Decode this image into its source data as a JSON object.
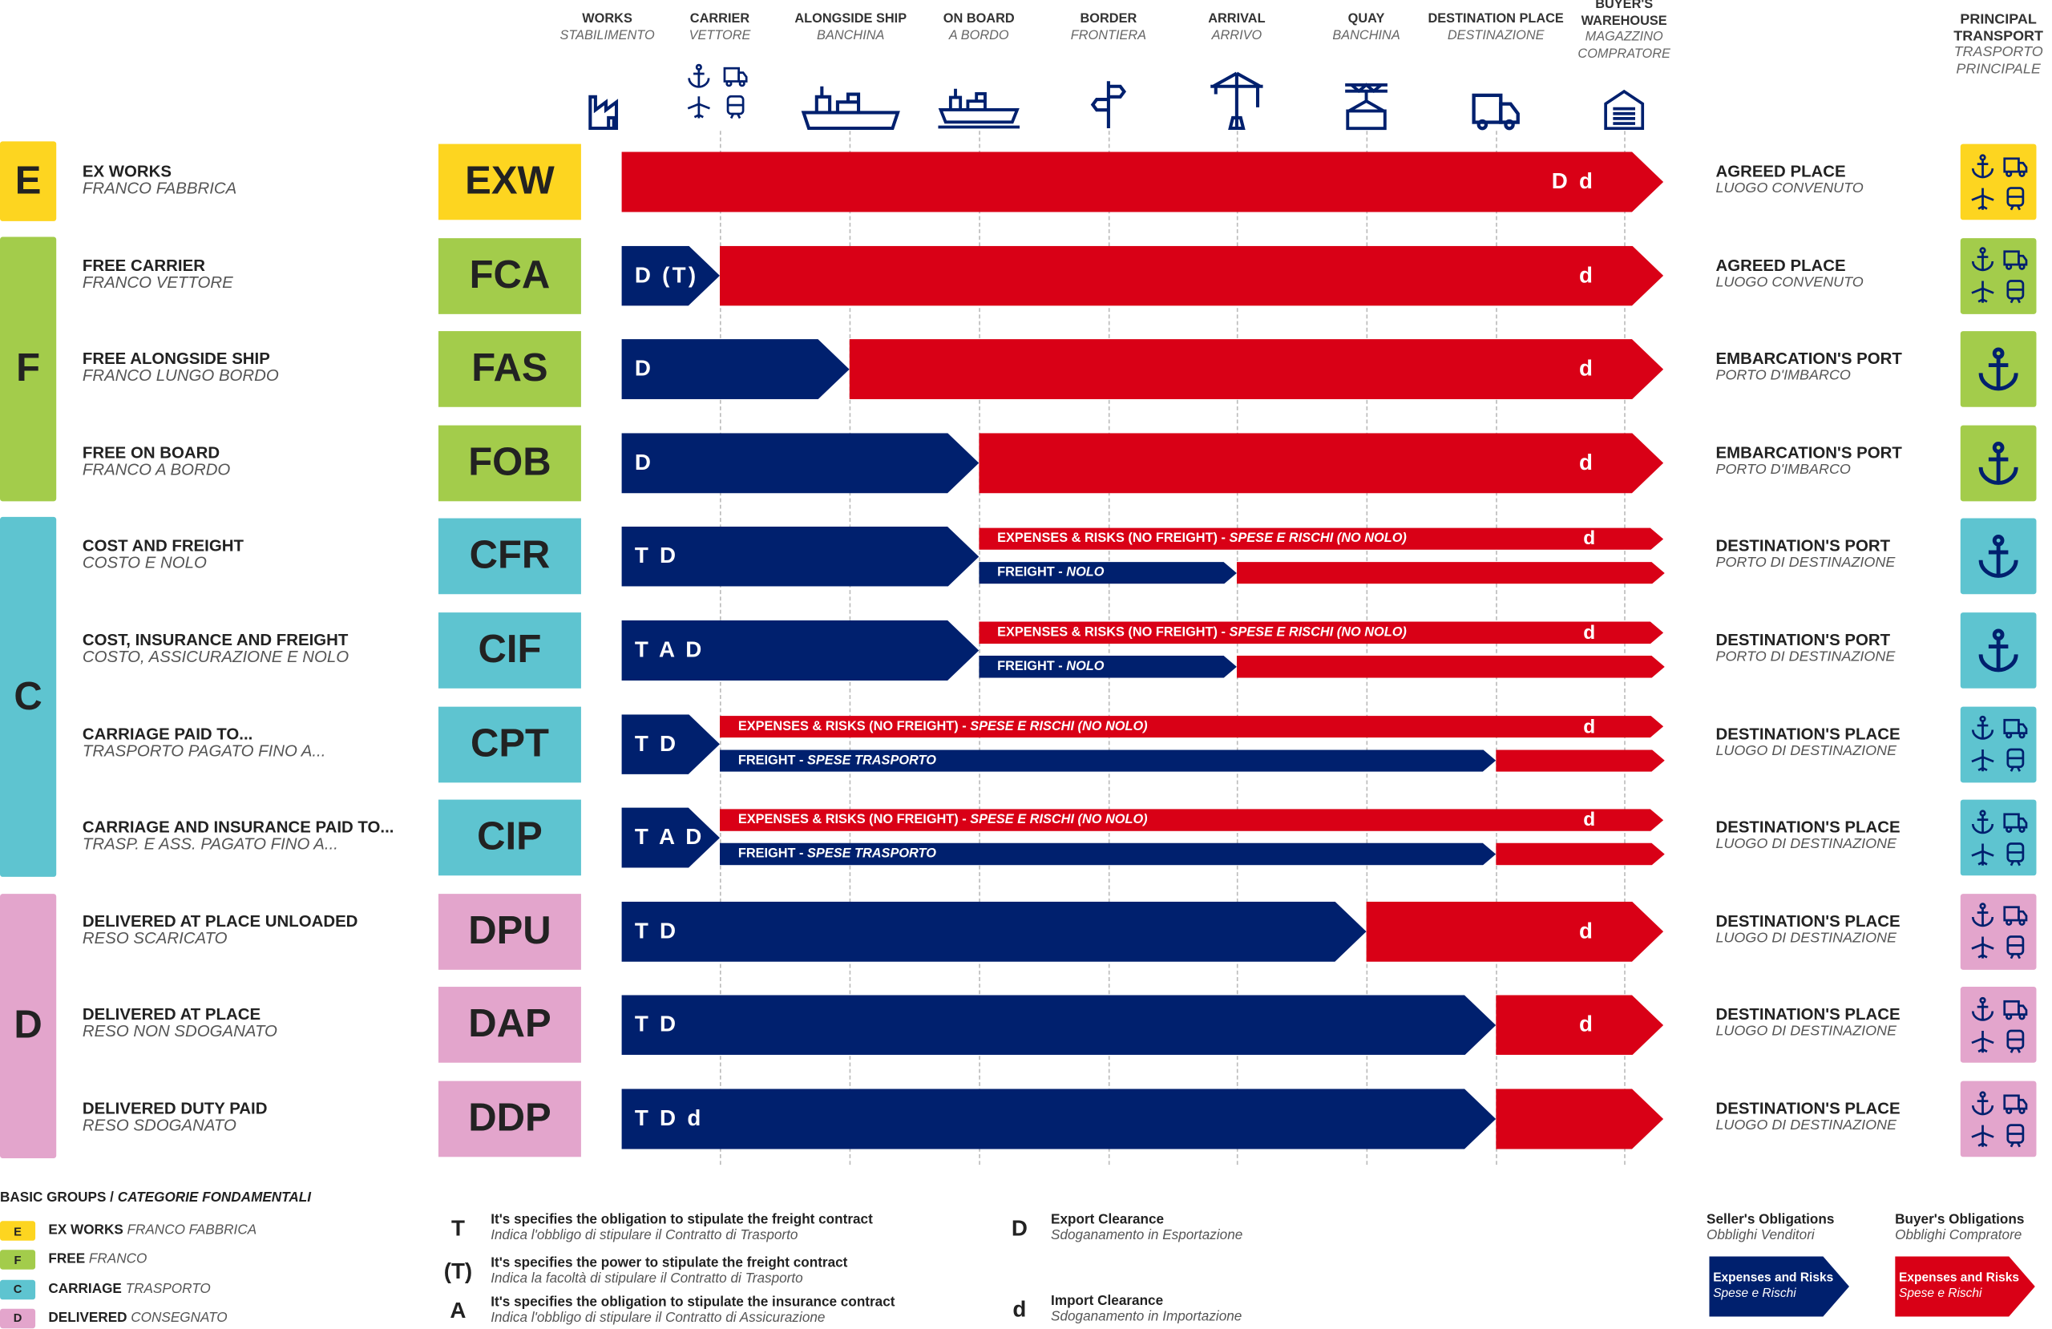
{
  "colors": {
    "E": "#fdd520",
    "F": "#a3cc4b",
    "C": "#5ec4d0",
    "D": "#e3a5cc",
    "seller": "#00206e",
    "buyer": "#d90016",
    "icon": "#00206e"
  },
  "columns": [
    {
      "key": "works",
      "label": "WORKS",
      "label_it": "STABILIMENTO",
      "icon": "factory-icon"
    },
    {
      "key": "carrier",
      "label": "CARRIER",
      "label_it": "VETTORE",
      "icon": "multimodal-icon"
    },
    {
      "key": "alongside",
      "label": "ALONGSIDE SHIP",
      "label_it": "BANCHINA",
      "icon": "ship-icon"
    },
    {
      "key": "onboard",
      "label": "ON BOARD",
      "label_it": "A BORDO",
      "icon": "ship-on-water-icon"
    },
    {
      "key": "border",
      "label": "BORDER",
      "label_it": "FRONTIERA",
      "icon": "signpost-icon"
    },
    {
      "key": "arrival",
      "label": "ARRIVAL",
      "label_it": "ARRIVO",
      "icon": "crane-icon"
    },
    {
      "key": "quay",
      "label": "QUAY",
      "label_it": "BANCHINA",
      "icon": "container-icon"
    },
    {
      "key": "dest",
      "label": "DESTINATION PLACE",
      "label_it": "DESTINAZIONE",
      "icon": "truck-icon"
    },
    {
      "key": "warehouse",
      "label": "BUYER'S WAREHOUSE",
      "label_it": "MAGAZZINO COMPRATORE",
      "icon": "warehouse-icon"
    }
  ],
  "principal_transport": {
    "label": "PRINCIPAL TRANSPORT",
    "label_it": "TRASPORTO PRINCIPALE"
  },
  "groups": [
    {
      "letter": "E",
      "rows": 1
    },
    {
      "letter": "F",
      "rows": 3
    },
    {
      "letter": "C",
      "rows": 4
    },
    {
      "letter": "D",
      "rows": 3
    }
  ],
  "rows": [
    {
      "code": "EXW",
      "group": "E",
      "name": "EX WORKS",
      "name_it": "FRANCO FABBRICA",
      "seller": "",
      "seller_end": "works",
      "buyer": "D d",
      "type": "full",
      "place": "AGREED PLACE",
      "place_it": "LUOGO CONVENUTO",
      "transport": "multimodal"
    },
    {
      "code": "FCA",
      "group": "F",
      "name": "FREE CARRIER",
      "name_it": "FRANCO VETTORE",
      "seller": "D (T)",
      "seller_end": "carrier",
      "buyer": "d",
      "type": "full",
      "place": "AGREED PLACE",
      "place_it": "LUOGO CONVENUTO",
      "transport": "multimodal"
    },
    {
      "code": "FAS",
      "group": "F",
      "name": "FREE ALONGSIDE SHIP",
      "name_it": "FRANCO LUNGO BORDO",
      "seller": "D",
      "seller_end": "alongside",
      "buyer": "d",
      "type": "full",
      "place": "EMBARCATION'S PORT",
      "place_it": "PORTO D'IMBARCO",
      "transport": "sea"
    },
    {
      "code": "FOB",
      "group": "F",
      "name": "FREE ON BOARD",
      "name_it": "FRANCO A BORDO",
      "seller": "D",
      "seller_end": "onboard",
      "buyer": "d",
      "type": "full",
      "place": "EMBARCATION'S PORT",
      "place_it": "PORTO D'IMBARCO",
      "transport": "sea"
    },
    {
      "code": "CFR",
      "group": "C",
      "name": "COST AND FREIGHT",
      "name_it": "COSTO E NOLO",
      "seller": "T D",
      "seller_end": "onboard",
      "buyer": "d",
      "type": "split",
      "risk_label": "EXPENSES & RISKS (NO FREIGHT) - ",
      "risk_label_it": "SPESE E RISCHI (NO NOLO)",
      "freight_label": "FREIGHT - ",
      "freight_label_it": "NOLO",
      "freight_end": "arrival",
      "place": "DESTINATION'S PORT",
      "place_it": "PORTO DI DESTINAZIONE",
      "transport": "sea"
    },
    {
      "code": "CIF",
      "group": "C",
      "name": "COST, INSURANCE AND FREIGHT",
      "name_it": "COSTO, ASSICURAZIONE E NOLO",
      "seller": "T A D",
      "seller_end": "onboard",
      "buyer": "d",
      "type": "split",
      "risk_label": "EXPENSES & RISKS (NO FREIGHT) - ",
      "risk_label_it": "SPESE E RISCHI (NO NOLO)",
      "freight_label": "FREIGHT - ",
      "freight_label_it": "NOLO",
      "freight_end": "arrival",
      "place": "DESTINATION'S PORT",
      "place_it": "PORTO DI DESTINAZIONE",
      "transport": "sea"
    },
    {
      "code": "CPT",
      "group": "C",
      "name": "CARRIAGE PAID TO...",
      "name_it": "TRASPORTO PAGATO FINO A...",
      "seller": "T D",
      "seller_end": "carrier",
      "buyer": "d",
      "type": "split",
      "risk_label": "EXPENSES & RISKS (NO FREIGHT) - ",
      "risk_label_it": "SPESE E RISCHI (NO NOLO)",
      "freight_label": "FREIGHT - ",
      "freight_label_it": "SPESE TRASPORTO",
      "freight_end": "dest",
      "place": "DESTINATION'S PLACE",
      "place_it": "LUOGO DI DESTINAZIONE",
      "transport": "multimodal"
    },
    {
      "code": "CIP",
      "group": "C",
      "name": "CARRIAGE AND INSURANCE PAID TO...",
      "name_it": "TRASP. E ASS. PAGATO FINO A...",
      "seller": "T A D",
      "seller_end": "carrier",
      "buyer": "d",
      "type": "split",
      "risk_label": "EXPENSES & RISKS (NO FREIGHT) - ",
      "risk_label_it": "SPESE E RISCHI (NO NOLO)",
      "freight_label": "FREIGHT - ",
      "freight_label_it": "SPESE TRASPORTO",
      "freight_end": "dest",
      "place": "DESTINATION'S PLACE",
      "place_it": "LUOGO DI DESTINAZIONE",
      "transport": "multimodal"
    },
    {
      "code": "DPU",
      "group": "D",
      "name": "DELIVERED AT PLACE UNLOADED",
      "name_it": "RESO SCARICATO",
      "seller": "T D",
      "seller_end": "quay",
      "buyer": "d",
      "type": "full",
      "place": "DESTINATION'S PLACE",
      "place_it": "LUOGO DI DESTINAZIONE",
      "transport": "multimodal"
    },
    {
      "code": "DAP",
      "group": "D",
      "name": "DELIVERED AT PLACE",
      "name_it": "RESO NON SDOGANATO",
      "seller": "T D",
      "seller_end": "dest",
      "buyer": "d",
      "type": "full",
      "place": "DESTINATION'S PLACE",
      "place_it": "LUOGO DI DESTINAZIONE",
      "transport": "multimodal"
    },
    {
      "code": "DDP",
      "group": "D",
      "name": "DELIVERED DUTY PAID",
      "name_it": "RESO SDOGANATO",
      "seller": "T D d",
      "seller_end": "dest",
      "buyer": "",
      "type": "full",
      "place": "DESTINATION'S PLACE",
      "place_it": "LUOGO DI DESTINAZIONE",
      "transport": "multimodal"
    }
  ],
  "legend": {
    "groups_title": "BASIC GROUPS / ",
    "groups_title_it": "CATEGORIE FONDAMENTALI",
    "groups": [
      {
        "letter": "E",
        "label": "EX WORKS",
        "label_it": "FRANCO FABBRICA"
      },
      {
        "letter": "F",
        "label": "FREE",
        "label_it": "FRANCO"
      },
      {
        "letter": "C",
        "label": "CARRIAGE",
        "label_it": "TRASPORTO"
      },
      {
        "letter": "D",
        "label": "DELIVERED",
        "label_it": "CONSEGNATO"
      }
    ],
    "symbols": [
      {
        "symbol": "T",
        "text": "It's specifies the obligation to stipulate the freight contract",
        "text_it": "Indica l'obbligo di stipulare il Contratto di Trasporto"
      },
      {
        "symbol": "(T)",
        "text": "It's specifies the power to stipulate the freight contract",
        "text_it": "Indica la facoltà di stipulare il Contratto di Trasporto"
      },
      {
        "symbol": "A",
        "text": "It's specifies the obligation to stipulate the insurance contract",
        "text_it": "Indica l'obbligo di stipulare il Contratto di Assicurazione"
      },
      {
        "symbol": "D",
        "text": "Export Clearance",
        "text_it": "Sdoganamento in Esportazione"
      },
      {
        "symbol": "d",
        "text": "Import Clearance",
        "text_it": "Sdoganamento in Importazione"
      }
    ],
    "seller": {
      "title": "Seller's Obligations",
      "title_it": "Obblighi Venditori",
      "arrow": "Expenses and Risks",
      "arrow_it": "Spese e Rischi"
    },
    "buyer": {
      "title": "Buyer's Obligations",
      "title_it": "Obblighi Compratore",
      "arrow": "Expenses and Risks",
      "arrow_it": "Spese e Rischi"
    }
  }
}
